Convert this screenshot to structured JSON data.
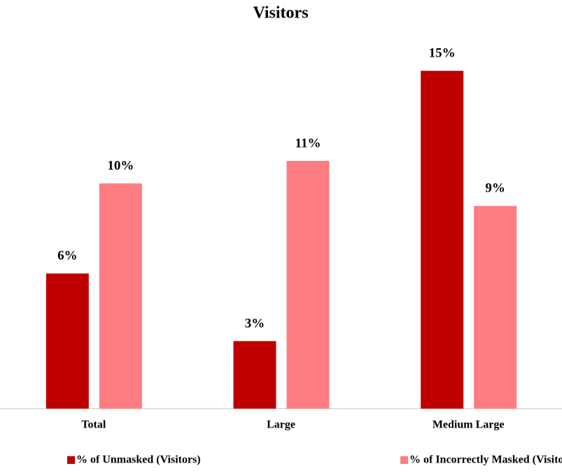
{
  "chart_data": {
    "type": "bar",
    "title": "Visitors",
    "categories": [
      "Total",
      "Large",
      "Medium Large"
    ],
    "series": [
      {
        "name": "% of Unmasked (Visitors)",
        "color": "#c00000",
        "values": [
          6,
          3,
          15
        ],
        "value_labels": [
          "6%",
          "3%",
          "15%"
        ]
      },
      {
        "name": "% of Incorrectly Masked (Visitors)",
        "color": "#ff7c80",
        "values": [
          10,
          11,
          9
        ],
        "value_labels": [
          "10%",
          "11%",
          "9%"
        ]
      }
    ],
    "ylim": [
      0,
      16
    ],
    "legend": "bottom"
  }
}
